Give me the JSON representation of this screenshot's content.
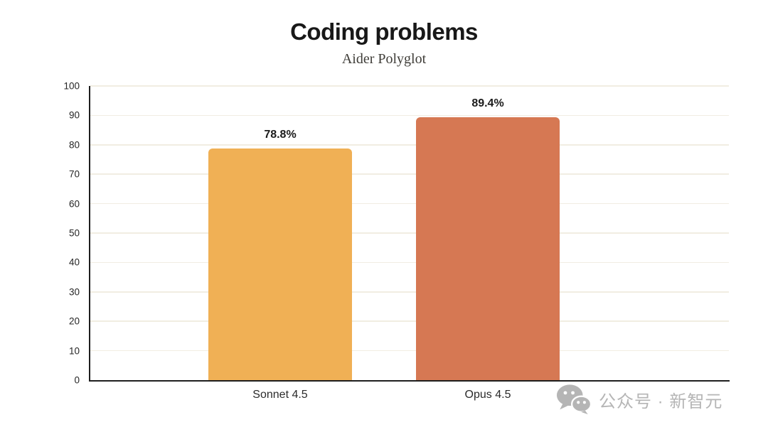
{
  "header": {
    "title": "Coding problems",
    "subtitle": "Aider Polyglot"
  },
  "chart_data": {
    "type": "bar",
    "title": "Coding problems",
    "subtitle": "Aider Polyglot",
    "categories": [
      "Sonnet 4.5",
      "Opus 4.5"
    ],
    "values": [
      78.8,
      89.4
    ],
    "value_labels": [
      "78.8%",
      "89.4%"
    ],
    "bar_colors": [
      "#F0B055",
      "#D67853"
    ],
    "ylabel": "",
    "xlabel": "",
    "ylim": [
      0,
      100
    ],
    "yticks": [
      0,
      10,
      20,
      30,
      40,
      50,
      60,
      70,
      80,
      90,
      100
    ],
    "grid": "horizontal",
    "gridline_color": "#f1ede2",
    "axis_color": "#1e1e1e",
    "tick_label_color": "#262626",
    "legend": "none"
  },
  "watermark": {
    "icon": "wechat-icon",
    "text": "公众号 · 新智元",
    "color": "#b5b5b5"
  }
}
